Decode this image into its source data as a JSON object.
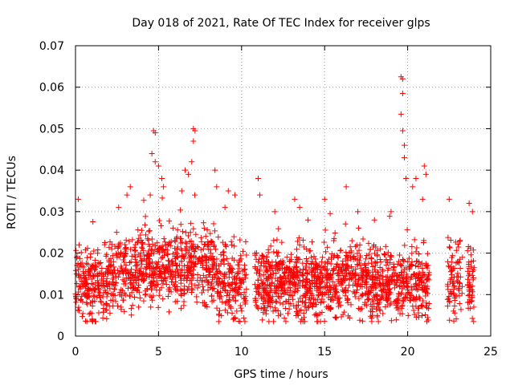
{
  "chart_data": {
    "type": "scatter",
    "title": "Day 018 of 2021, Rate Of TEC Index for receiver glps",
    "xlabel": "GPS time / hours",
    "ylabel": "ROTI / TECUs",
    "xlim": [
      0,
      25
    ],
    "ylim": [
      0,
      0.07
    ],
    "x_ticks": [
      0,
      5,
      10,
      15,
      20,
      25
    ],
    "x_tick_labels": [
      "0",
      "5",
      "10",
      "15",
      "20",
      "25"
    ],
    "y_ticks": [
      0,
      0.01,
      0.02,
      0.03,
      0.04,
      0.05,
      0.06,
      0.07
    ],
    "y_tick_labels": [
      "0",
      "0.01",
      "0.02",
      "0.03",
      "0.04",
      "0.05",
      "0.06",
      "0.07"
    ],
    "grid": true,
    "marker": "+",
    "color": "#ff0000",
    "series": [
      {
        "name": "ROTI",
        "data_gaps_hours": [
          [
            10.3,
            10.8
          ],
          [
            21.3,
            22.4
          ],
          [
            23.3,
            23.6
          ]
        ],
        "x_range": [
          0,
          24
        ],
        "typical_range": [
          0.005,
          0.025
        ],
        "notable_points": [
          {
            "x": 4.7,
            "y": 0.0495
          },
          {
            "x": 4.8,
            "y": 0.049
          },
          {
            "x": 4.6,
            "y": 0.044
          },
          {
            "x": 4.8,
            "y": 0.042
          },
          {
            "x": 5.0,
            "y": 0.041
          },
          {
            "x": 5.2,
            "y": 0.038
          },
          {
            "x": 5.3,
            "y": 0.036
          },
          {
            "x": 4.5,
            "y": 0.034
          },
          {
            "x": 3.3,
            "y": 0.036
          },
          {
            "x": 3.1,
            "y": 0.034
          },
          {
            "x": 2.6,
            "y": 0.031
          },
          {
            "x": 6.6,
            "y": 0.04
          },
          {
            "x": 6.8,
            "y": 0.039
          },
          {
            "x": 7.1,
            "y": 0.05
          },
          {
            "x": 7.2,
            "y": 0.0495
          },
          {
            "x": 7.1,
            "y": 0.047
          },
          {
            "x": 7.0,
            "y": 0.042
          },
          {
            "x": 6.4,
            "y": 0.035
          },
          {
            "x": 8.4,
            "y": 0.04
          },
          {
            "x": 8.5,
            "y": 0.036
          },
          {
            "x": 9.2,
            "y": 0.035
          },
          {
            "x": 9.6,
            "y": 0.034
          },
          {
            "x": 9.0,
            "y": 0.031
          },
          {
            "x": 11.0,
            "y": 0.038
          },
          {
            "x": 11.1,
            "y": 0.034
          },
          {
            "x": 12.0,
            "y": 0.03
          },
          {
            "x": 13.2,
            "y": 0.033
          },
          {
            "x": 13.5,
            "y": 0.031
          },
          {
            "x": 14.0,
            "y": 0.028
          },
          {
            "x": 15.0,
            "y": 0.033
          },
          {
            "x": 16.3,
            "y": 0.036
          },
          {
            "x": 17.0,
            "y": 0.03
          },
          {
            "x": 18.0,
            "y": 0.028
          },
          {
            "x": 19.0,
            "y": 0.03
          },
          {
            "x": 19.6,
            "y": 0.0625
          },
          {
            "x": 19.7,
            "y": 0.062
          },
          {
            "x": 19.7,
            "y": 0.0585
          },
          {
            "x": 19.6,
            "y": 0.0535
          },
          {
            "x": 19.7,
            "y": 0.0495
          },
          {
            "x": 19.8,
            "y": 0.046
          },
          {
            "x": 19.8,
            "y": 0.043
          },
          {
            "x": 19.9,
            "y": 0.038
          },
          {
            "x": 20.3,
            "y": 0.036
          },
          {
            "x": 20.5,
            "y": 0.038
          },
          {
            "x": 21.0,
            "y": 0.041
          },
          {
            "x": 21.1,
            "y": 0.039
          },
          {
            "x": 20.9,
            "y": 0.033
          },
          {
            "x": 22.5,
            "y": 0.033
          },
          {
            "x": 23.7,
            "y": 0.032
          },
          {
            "x": 23.9,
            "y": 0.03
          }
        ]
      }
    ]
  }
}
